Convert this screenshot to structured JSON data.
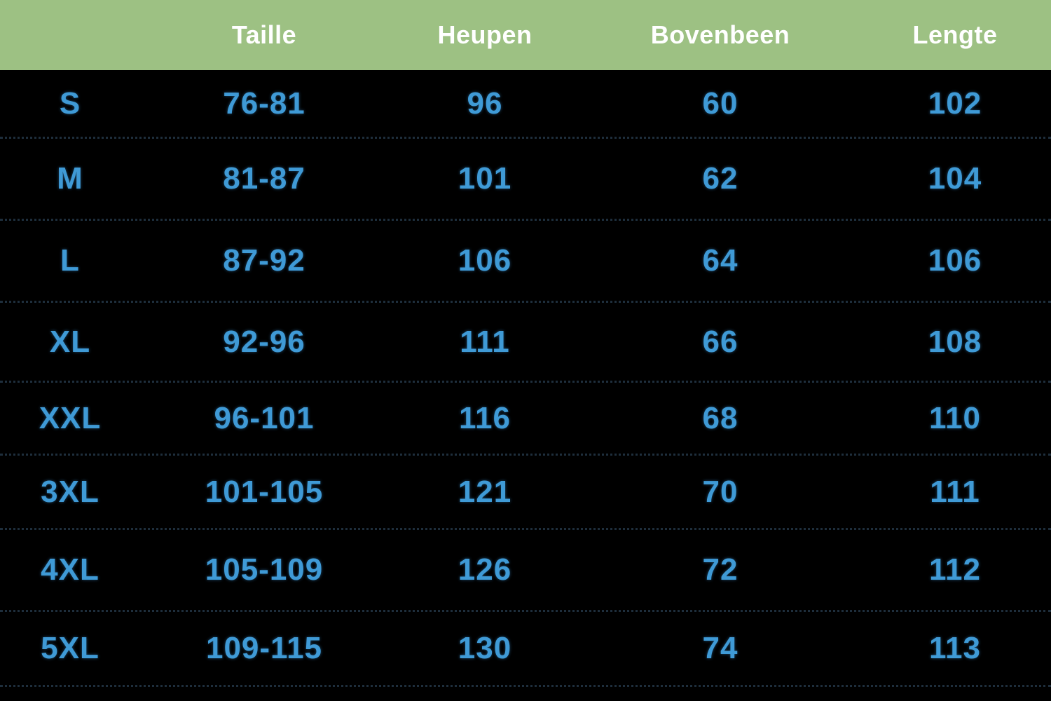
{
  "table": {
    "headers": [
      "",
      "Taille",
      "Heupen",
      "Bovenbeen",
      "Lengte"
    ],
    "rows": [
      [
        "S",
        "76-81",
        "96",
        "60",
        "102"
      ],
      [
        "M",
        "81-87",
        "101",
        "62",
        "104"
      ],
      [
        "L",
        "87-92",
        "106",
        "64",
        "106"
      ],
      [
        "XL",
        "92-96",
        "111",
        "66",
        "108"
      ],
      [
        "XXL",
        "96-101",
        "116",
        "68",
        "110"
      ],
      [
        "3XL",
        "101-105",
        "121",
        "70",
        "111"
      ],
      [
        "4XL",
        "105-109",
        "126",
        "72",
        "112"
      ],
      [
        "5XL",
        "109-115",
        "130",
        "74",
        "113"
      ]
    ]
  },
  "colors": {
    "header_bg": "#9dc183",
    "header_text": "#ffffff",
    "cell_text": "#3f9ad6",
    "body_bg": "#000000"
  }
}
